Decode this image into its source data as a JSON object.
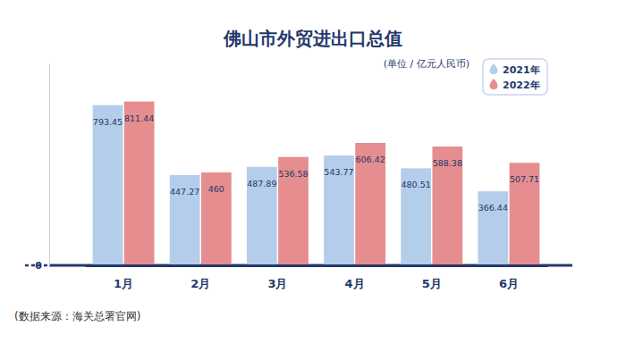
{
  "chart_data": {
    "type": "bar",
    "title": "佛山市外贸进出口总值",
    "subtitle": "(单位 / 亿元人民币)",
    "source": "(数据来源：海关总署官网)",
    "categories": [
      "1月",
      "2月",
      "3月",
      "4月",
      "5月",
      "6月"
    ],
    "series": [
      {
        "name": "2021年",
        "color": "#b4cdea",
        "values": [
          793.45,
          447.27,
          487.89,
          543.77,
          480.51,
          366.44
        ]
      },
      {
        "name": "2022年",
        "color": "#e68d8f",
        "values": [
          811.44,
          460,
          536.58,
          606.42,
          588.38,
          507.71
        ]
      }
    ],
    "ylim": [
      0,
      1000
    ],
    "yticks": [
      0
    ],
    "grid": false,
    "legend": "top-right",
    "data_labels": true
  }
}
